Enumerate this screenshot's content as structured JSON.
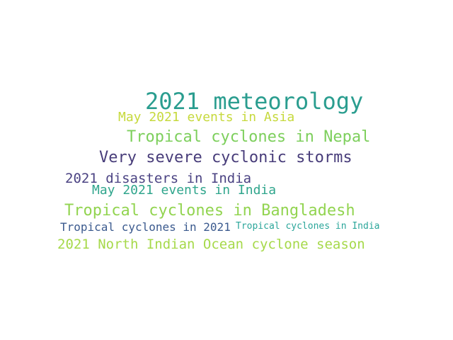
{
  "word_cloud": {
    "words": [
      {
        "text": "2021 meteorology",
        "color": "#2a9d8f"
      },
      {
        "text": "May 2021 events in Asia",
        "color": "#c6d93c"
      },
      {
        "text": "Tropical cyclones in Nepal",
        "color": "#7dcf5c"
      },
      {
        "text": "Very severe cyclonic storms",
        "color": "#483d7a"
      },
      {
        "text": "2021 disasters in India",
        "color": "#4b4383"
      },
      {
        "text": "May 2021 events in India",
        "color": "#2fa58c"
      },
      {
        "text": "Tropical cyclones in Bangladesh",
        "color": "#92d450"
      },
      {
        "text": "Tropical cyclones in 2021",
        "color": "#3b5a8e"
      },
      {
        "text": "Tropical cyclones in India",
        "color": "#2ba69a"
      },
      {
        "text": "2021 North Indian Ocean cyclone season",
        "color": "#a6d94a"
      }
    ]
  }
}
